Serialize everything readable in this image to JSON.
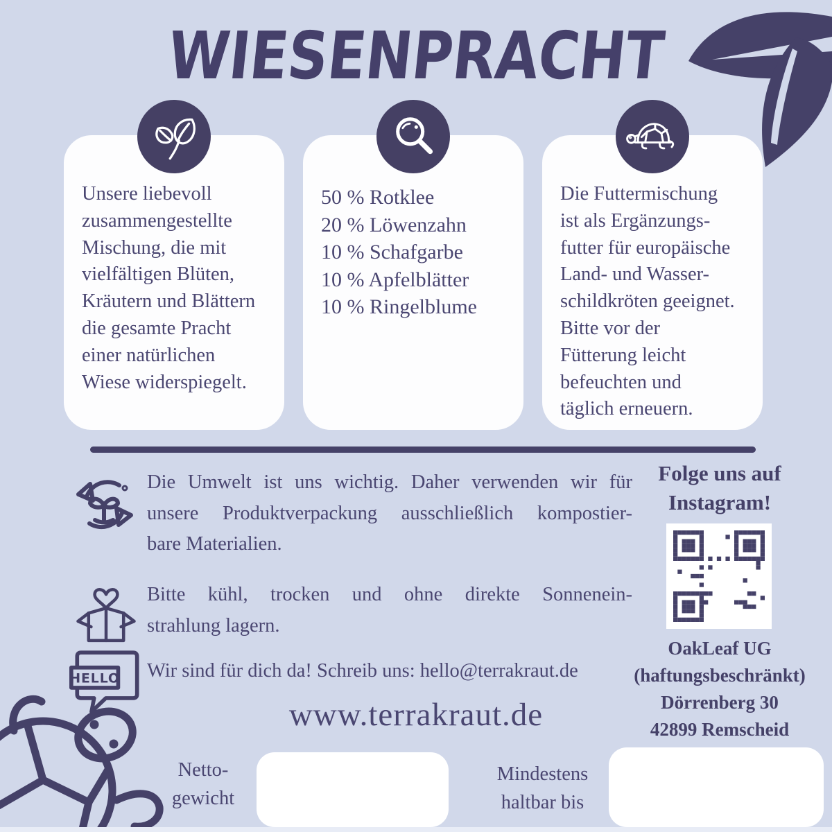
{
  "title": "WIESENPRACHT",
  "colors": {
    "background": "#d1d8ea",
    "card": "#fdfdfe",
    "dark_purple": "#454168",
    "text": "#4a4671",
    "white": "#ffffff"
  },
  "cards": [
    {
      "icon": "sprout-icon",
      "lines": [
        "Unsere liebevoll",
        "zusammengestellte",
        "Mischung, die mit",
        "vielfältigen Blüten,",
        "Kräutern und Blättern",
        "die gesamte Pracht",
        "einer natürlichen",
        "Wiese widerspiegelt."
      ]
    },
    {
      "icon": "magnifier-icon",
      "lines": [
        "50 % Rotklee",
        "20 % Löwenzahn",
        "10 % Schafgarbe",
        "10 % Apfelblätter",
        "10 % Ringelblume"
      ]
    },
    {
      "icon": "turtle-icon",
      "lines": [
        "Die Futtermischung",
        "ist als Ergänzungs-",
        "futter für europäische",
        "Land- und Wasser-",
        "schildkröten geeignet.",
        "Bitte vor der",
        "Fütterung leicht",
        "befeuchten und",
        "täglich erneuern."
      ]
    }
  ],
  "info": {
    "environment": {
      "icon": "recycle-plant-icon",
      "lines": [
        "Die Umwelt ist uns wichtig. Daher verwenden wir für",
        "unsere Produktverpackung ausschließlich kompostier-",
        "bare Materialien."
      ]
    },
    "storage": {
      "icon": "open-box-heart-icon",
      "lines": [
        "Bitte kühl, trocken und ohne direkte Sonnenein-",
        "strahlung lagern."
      ]
    },
    "contact": {
      "icon": "hello-speech-bubble-icon",
      "hello_label": "HELLO",
      "text": "Wir sind für dich da! Schreib uns: hello@terrakraut.de"
    },
    "website": "www.terrakraut.de"
  },
  "instagram": {
    "heading_lines": [
      "Folge uns auf",
      "Instagram!"
    ],
    "qr": "qr-code"
  },
  "address": {
    "lines": [
      "OakLeaf UG",
      "(haftungsbeschränkt)",
      "Dörrenberg 30",
      "42899 Remscheid"
    ]
  },
  "fields": [
    {
      "label_lines": [
        "Netto-",
        "gewicht"
      ],
      "value": ""
    },
    {
      "label_lines": [
        "Mindestens",
        "haltbar bis"
      ],
      "value": ""
    }
  ]
}
